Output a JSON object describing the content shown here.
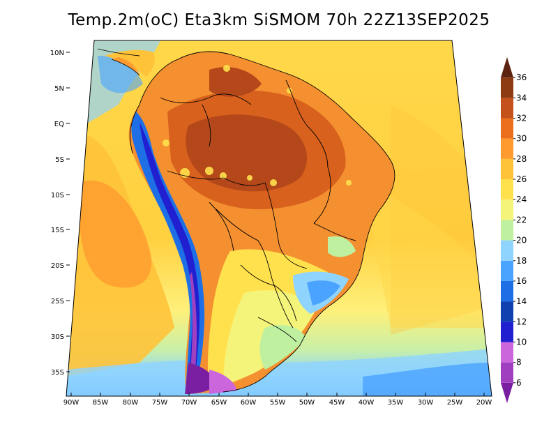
{
  "title": "Temp.2m(oC) Eta3km SiSMOM 70h 22Z13SEP2025",
  "lat_labels": [
    "10N",
    "5N",
    "EQ",
    "5S",
    "10S",
    "15S",
    "20S",
    "25S",
    "30S",
    "35S"
  ],
  "lon_labels": [
    "90W",
    "85W",
    "80W",
    "75W",
    "70W",
    "65W",
    "60W",
    "55W",
    "50W",
    "45W",
    "40W",
    "35W",
    "30W",
    "25W",
    "20W"
  ],
  "colorbar": {
    "labels": [
      "6",
      "8",
      "10",
      "12",
      "14",
      "16",
      "18",
      "20",
      "22",
      "24",
      "26",
      "28",
      "30",
      "32",
      "34",
      "36"
    ],
    "colors": [
      "#7b1fa2",
      "#a040c0",
      "#cc66dd",
      "#2020d0",
      "#1040b0",
      "#1e6fe6",
      "#4aa3ff",
      "#8fd3ff",
      "#bff0a0",
      "#f4f47a",
      "#ffe14d",
      "#ffc33a",
      "#ff9a2e",
      "#ec6f1e",
      "#c4501c",
      "#8c3a12",
      "#5c2410"
    ]
  },
  "field": {
    "variable": "Temp.2m",
    "unit": "oC",
    "palette_note": "ocean ~24-28, Amazon 30-34, Andes 6-16, south 18-22"
  }
}
